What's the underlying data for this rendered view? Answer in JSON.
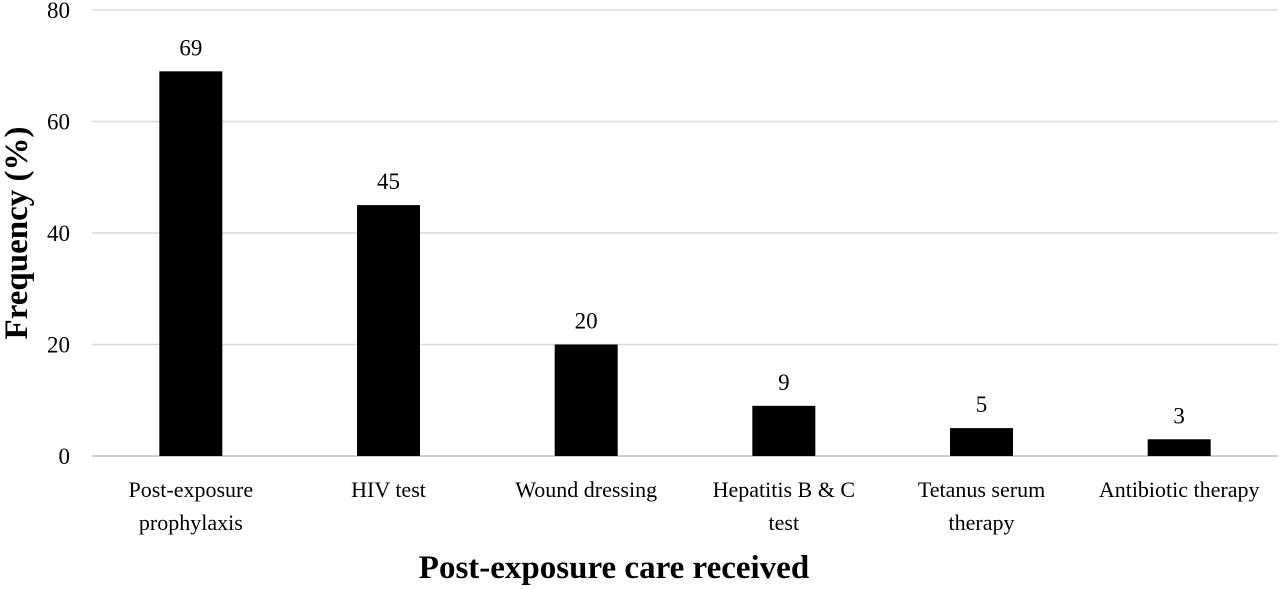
{
  "chart_data": {
    "type": "bar",
    "categories": [
      [
        "Post-exposure",
        "prophylaxis"
      ],
      [
        "HIV test"
      ],
      [
        "Wound dressing"
      ],
      [
        "Hepatitis B & C",
        "test"
      ],
      [
        "Tetanus serum",
        "therapy"
      ],
      [
        "Antibiotic therapy"
      ]
    ],
    "values": [
      69,
      45,
      20,
      9,
      5,
      3
    ],
    "data_labels": [
      "69",
      "45",
      "20",
      "9",
      "5",
      "3"
    ],
    "xlabel": "Post-exposure care received",
    "ylabel": "Frequency (%)",
    "ylim": [
      0,
      80
    ],
    "yticks": [
      0,
      20,
      40,
      60,
      80
    ],
    "grid": true,
    "colors": {
      "bar": "#000000",
      "grid": "#d9d9d9",
      "axis": "#bfbfbf"
    }
  }
}
